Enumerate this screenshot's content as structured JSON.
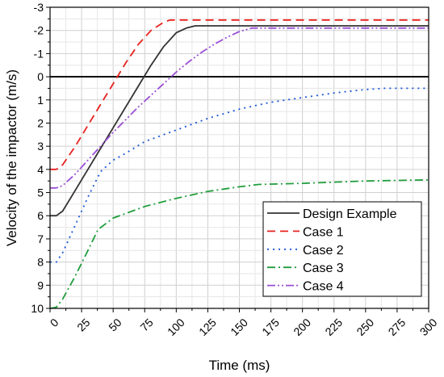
{
  "chart_data": {
    "type": "line",
    "xlabel": "Time (ms)",
    "ylabel": "Velocity of the impactor (m/s)",
    "xlim": [
      0,
      300
    ],
    "ylim": [
      10,
      -3
    ],
    "y_inverted": true,
    "grid": true,
    "legend_position": "bottom-right",
    "x_ticks": [
      "0",
      "25",
      "50",
      "75",
      "100",
      "125",
      "150",
      "175",
      "200",
      "225",
      "250",
      "275",
      "300"
    ],
    "y_ticks": [
      "-3",
      "-2",
      "-1",
      "0",
      "1",
      "2",
      "3",
      "4",
      "5",
      "6",
      "7",
      "8",
      "9",
      "10"
    ],
    "reference_line": {
      "y": 0
    },
    "series": [
      {
        "name": "Design Example",
        "color": "#333333",
        "dash": "solid",
        "x": [
          0,
          5,
          10,
          20,
          30,
          40,
          50,
          60,
          70,
          80,
          90,
          100,
          108,
          115,
          120,
          150,
          200,
          250,
          300
        ],
        "y": [
          6.0,
          6.0,
          5.8,
          4.9,
          4.0,
          3.1,
          2.2,
          1.3,
          0.4,
          -0.5,
          -1.3,
          -1.9,
          -2.1,
          -2.2,
          -2.2,
          -2.2,
          -2.2,
          -2.2,
          -2.2
        ]
      },
      {
        "name": "Case 1",
        "color": "#e8221e",
        "dash": "10,6",
        "x": [
          0,
          5,
          10,
          20,
          30,
          40,
          50,
          60,
          70,
          80,
          90,
          95,
          100,
          150,
          200,
          250,
          300
        ],
        "y": [
          4.0,
          4.0,
          3.8,
          3.0,
          2.1,
          1.2,
          0.3,
          -0.6,
          -1.4,
          -2.0,
          -2.35,
          -2.45,
          -2.45,
          -2.45,
          -2.45,
          -2.45,
          -2.45
        ]
      },
      {
        "name": "Case 2",
        "color": "#1a56d8",
        "dash": "2,5",
        "x": [
          0,
          5,
          10,
          20,
          30,
          40,
          50,
          60,
          75,
          100,
          125,
          150,
          175,
          200,
          225,
          250,
          265,
          300
        ],
        "y": [
          8.0,
          8.0,
          7.6,
          6.4,
          5.2,
          4.1,
          3.6,
          3.3,
          2.8,
          2.3,
          1.8,
          1.4,
          1.1,
          0.9,
          0.7,
          0.55,
          0.5,
          0.5
        ]
      },
      {
        "name": "Case 3",
        "color": "#1f9e3c",
        "dash": "10,4,2,4",
        "x": [
          0,
          5,
          10,
          20,
          30,
          38,
          50,
          60,
          75,
          100,
          125,
          150,
          165,
          200,
          250,
          300
        ],
        "y": [
          10.0,
          9.95,
          9.6,
          8.6,
          7.5,
          6.6,
          6.1,
          5.9,
          5.6,
          5.25,
          4.95,
          4.75,
          4.65,
          4.6,
          4.5,
          4.45
        ]
      },
      {
        "name": "Case 4",
        "color": "#9b4fd6",
        "dash": "10,3,2,3,2,3",
        "x": [
          0,
          5,
          10,
          20,
          30,
          40,
          50,
          60,
          70,
          80,
          90,
          100,
          110,
          120,
          130,
          140,
          150,
          160,
          200,
          250,
          300
        ],
        "y": [
          4.8,
          4.8,
          4.7,
          4.2,
          3.6,
          3.0,
          2.4,
          1.85,
          1.3,
          0.8,
          0.3,
          -0.2,
          -0.65,
          -1.05,
          -1.4,
          -1.7,
          -1.95,
          -2.1,
          -2.1,
          -2.1,
          -2.1
        ]
      }
    ]
  }
}
